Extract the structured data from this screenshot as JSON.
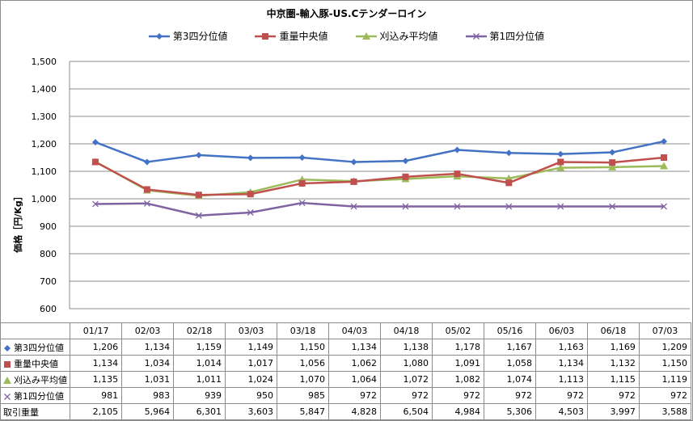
{
  "chart_data": {
    "type": "line",
    "title": "中京圏-輸入豚-US.Cテンダーロイン",
    "ylabel": "価格［円/Kg］",
    "categories": [
      "01/17",
      "02/03",
      "02/18",
      "03/03",
      "03/18",
      "04/03",
      "04/18",
      "05/02",
      "05/16",
      "06/03",
      "06/18",
      "07/03"
    ],
    "ylim": [
      600,
      1500
    ],
    "yticks": [
      600,
      700,
      800,
      900,
      1000,
      1100,
      1200,
      1300,
      1400,
      1500
    ],
    "ytick_labels": [
      "600",
      "700",
      "800",
      "900",
      "1,000",
      "1,100",
      "1,200",
      "1,300",
      "1,400",
      "1,500"
    ],
    "grid": true,
    "legend_position": "top",
    "series": [
      {
        "name": "第3四分位値",
        "color": "#4472c4",
        "marker": "diamond",
        "values": [
          1206,
          1134,
          1159,
          1149,
          1150,
          1134,
          1138,
          1178,
          1167,
          1163,
          1169,
          1209
        ],
        "labels": [
          "1,206",
          "1,134",
          "1,159",
          "1,149",
          "1,150",
          "1,134",
          "1,138",
          "1,178",
          "1,167",
          "1,163",
          "1,169",
          "1,209"
        ]
      },
      {
        "name": "重量中央値",
        "color": "#c0504d",
        "marker": "square",
        "values": [
          1134,
          1034,
          1014,
          1017,
          1056,
          1062,
          1080,
          1091,
          1058,
          1134,
          1132,
          1150
        ],
        "labels": [
          "1,134",
          "1,034",
          "1,014",
          "1,017",
          "1,056",
          "1,062",
          "1,080",
          "1,091",
          "1,058",
          "1,134",
          "1,132",
          "1,150"
        ]
      },
      {
        "name": "刈込み平均値",
        "color": "#9bbb59",
        "marker": "triangle",
        "values": [
          1135,
          1031,
          1011,
          1024,
          1070,
          1064,
          1072,
          1082,
          1074,
          1113,
          1115,
          1119
        ],
        "labels": [
          "1,135",
          "1,031",
          "1,011",
          "1,024",
          "1,070",
          "1,064",
          "1,072",
          "1,082",
          "1,074",
          "1,113",
          "1,115",
          "1,119"
        ]
      },
      {
        "name": "第1四分位値",
        "color": "#8064a2",
        "marker": "x",
        "values": [
          981,
          983,
          939,
          950,
          985,
          972,
          972,
          972,
          972,
          972,
          972,
          972
        ],
        "labels": [
          "981",
          "983",
          "939",
          "950",
          "985",
          "972",
          "972",
          "972",
          "972",
          "972",
          "972",
          "972"
        ]
      }
    ],
    "extra_rows": [
      {
        "name": "取引重量",
        "labels": [
          "2,105",
          "5,964",
          "6,301",
          "3,603",
          "5,847",
          "4,828",
          "6,504",
          "4,984",
          "5,306",
          "4,503",
          "3,997",
          "3,588"
        ]
      }
    ]
  }
}
